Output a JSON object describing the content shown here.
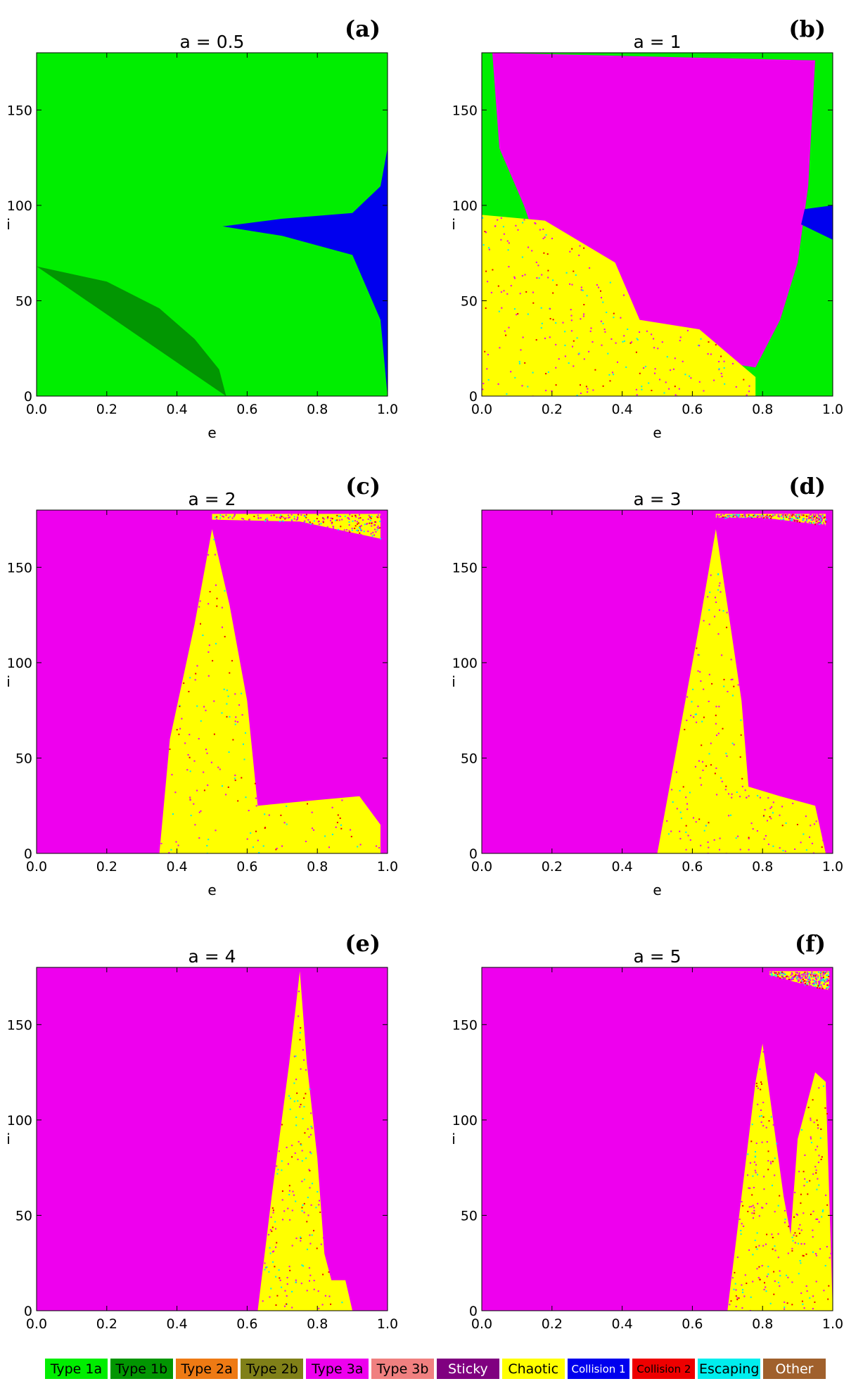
{
  "colors": {
    "type_1a": "#00ee00",
    "type_1b": "#029602",
    "type_2a": "#ee7a14",
    "type_2b": "#808018",
    "type_3a": "#ee00ee",
    "type_3b": "#f08080",
    "sticky": "#800080",
    "chaotic": "#ffff00",
    "collision_1": "#0000ee",
    "collision_2": "#ee0000",
    "escaping": "#00eeee",
    "other": "#a0602c"
  },
  "chart_data": [
    {
      "type": "heatmap",
      "panel": "(a)",
      "title": "a = 0.5",
      "xlabel": "e",
      "ylabel": "i",
      "xlim": [
        0,
        1
      ],
      "ylim": [
        0,
        180
      ],
      "xticks": [
        "0.0",
        "0.2",
        "0.4",
        "0.6",
        "0.8",
        "1.0"
      ],
      "yticks": [
        "0",
        "50",
        "100",
        "150"
      ],
      "regions": [
        {
          "class": "Type 1a",
          "description_points_e_i": [
            [
              0,
              0
            ],
            [
              1,
              180
            ]
          ]
        },
        {
          "class": "Type 1b",
          "boundary_e_i": [
            [
              0,
              68
            ],
            [
              0.2,
              60
            ],
            [
              0.35,
              46
            ],
            [
              0.45,
              30
            ],
            [
              0.52,
              14
            ],
            [
              0.54,
              0
            ]
          ]
        },
        {
          "class": "Collision 1",
          "boundary_e_i": [
            [
              0.53,
              89
            ],
            [
              0.7,
              84
            ],
            [
              0.9,
              74
            ],
            [
              0.98,
              40
            ],
            [
              1.0,
              0
            ],
            [
              1.0,
              130
            ],
            [
              0.98,
              110
            ],
            [
              0.9,
              96
            ],
            [
              0.7,
              93
            ],
            [
              0.53,
              89
            ]
          ]
        }
      ]
    },
    {
      "type": "heatmap",
      "panel": "(b)",
      "title": "a = 1",
      "xlabel": "e",
      "ylabel": "i",
      "xlim": [
        0,
        1
      ],
      "ylim": [
        0,
        180
      ],
      "xticks": [
        "0.0",
        "0.2",
        "0.4",
        "0.6",
        "0.8",
        "1.0"
      ],
      "yticks": [
        "0",
        "50",
        "100",
        "150"
      ],
      "regions": [
        {
          "class": "Type 1a",
          "background": true
        },
        {
          "class": "Type 3a",
          "boundary_e_i": [
            [
              0.03,
              180
            ],
            [
              0.95,
              176
            ],
            [
              0.93,
              110
            ],
            [
              0.9,
              70
            ],
            [
              0.85,
              40
            ],
            [
              0.78,
              15
            ],
            [
              0.25,
              30
            ],
            [
              0.12,
              100
            ],
            [
              0.05,
              130
            ]
          ]
        },
        {
          "class": "Chaotic",
          "boundary_e_i": [
            [
              0,
              95
            ],
            [
              0.18,
              92
            ],
            [
              0.38,
              70
            ],
            [
              0.45,
              40
            ],
            [
              0.62,
              35
            ],
            [
              0.78,
              10
            ],
            [
              0.78,
              0
            ],
            [
              0,
              0
            ]
          ]
        },
        {
          "class": "Collision 1",
          "boundary_e_i": [
            [
              0.91,
              90
            ],
            [
              1.0,
              82
            ],
            [
              1.0,
              100
            ],
            [
              0.92,
              98
            ]
          ]
        }
      ]
    },
    {
      "type": "heatmap",
      "panel": "(c)",
      "title": "a = 2",
      "xlabel": "e",
      "ylabel": "i",
      "xlim": [
        0,
        1
      ],
      "ylim": [
        0,
        180
      ],
      "xticks": [
        "0.0",
        "0.2",
        "0.4",
        "0.6",
        "0.8",
        "1.0"
      ],
      "yticks": [
        "0",
        "50",
        "100",
        "150"
      ],
      "regions": [
        {
          "class": "Type 3a",
          "background": true
        },
        {
          "class": "Chaotic",
          "boundary_e_i": [
            [
              0.5,
              170
            ],
            [
              0.55,
              130
            ],
            [
              0.6,
              80
            ],
            [
              0.63,
              25
            ],
            [
              0.8,
              28
            ],
            [
              0.92,
              30
            ],
            [
              0.98,
              15
            ],
            [
              0.98,
              0
            ],
            [
              0.35,
              0
            ],
            [
              0.38,
              60
            ],
            [
              0.45,
              120
            ]
          ]
        },
        {
          "class": "Chaotic",
          "boundary_e_i": [
            [
              0.5,
              178
            ],
            [
              0.98,
              178
            ],
            [
              0.98,
              165
            ],
            [
              0.75,
              174
            ],
            [
              0.5,
              175
            ]
          ]
        }
      ]
    },
    {
      "type": "heatmap",
      "panel": "(d)",
      "title": "a = 3",
      "xlabel": "e",
      "ylabel": "i",
      "xlim": [
        0,
        1
      ],
      "ylim": [
        0,
        180
      ],
      "xticks": [
        "0.0",
        "0.2",
        "0.4",
        "0.6",
        "0.8",
        "1.0"
      ],
      "yticks": [
        "0",
        "50",
        "100",
        "150"
      ],
      "regions": [
        {
          "class": "Type 3a",
          "background": true
        },
        {
          "class": "Chaotic",
          "boundary_e_i": [
            [
              0.667,
              170
            ],
            [
              0.7,
              130
            ],
            [
              0.74,
              80
            ],
            [
              0.76,
              35
            ],
            [
              0.85,
              30
            ],
            [
              0.95,
              25
            ],
            [
              0.98,
              0
            ],
            [
              0.5,
              0
            ],
            [
              0.55,
              50
            ],
            [
              0.62,
              120
            ]
          ]
        },
        {
          "class": "Chaotic",
          "boundary_e_i": [
            [
              0.667,
              178
            ],
            [
              0.98,
              178
            ],
            [
              0.98,
              172
            ],
            [
              0.8,
              176
            ],
            [
              0.667,
              176
            ]
          ]
        }
      ]
    },
    {
      "type": "heatmap",
      "panel": "(e)",
      "title": "a = 4",
      "xlabel": "e",
      "ylabel": "i",
      "xlim": [
        0,
        1
      ],
      "ylim": [
        0,
        180
      ],
      "xticks": [
        "0.0",
        "0.2",
        "0.4",
        "0.6",
        "0.8",
        "1.0"
      ],
      "yticks": [
        "0",
        "50",
        "100",
        "150"
      ],
      "regions": [
        {
          "class": "Type 3a",
          "background": true
        },
        {
          "class": "Chaotic",
          "boundary_e_i": [
            [
              0.75,
              178
            ],
            [
              0.77,
              130
            ],
            [
              0.8,
              80
            ],
            [
              0.82,
              30
            ],
            [
              0.84,
              16
            ],
            [
              0.88,
              16
            ],
            [
              0.9,
              0
            ],
            [
              0.63,
              0
            ],
            [
              0.67,
              60
            ],
            [
              0.72,
              130
            ]
          ]
        }
      ]
    },
    {
      "type": "heatmap",
      "panel": "(f)",
      "title": "a = 5",
      "xlabel": "e",
      "ylabel": "i",
      "xlim": [
        0,
        1
      ],
      "ylim": [
        0,
        180
      ],
      "xticks": [
        "0.0",
        "0.2",
        "0.4",
        "0.6",
        "0.8",
        "1.0"
      ],
      "yticks": [
        "0",
        "50",
        "100",
        "150"
      ],
      "regions": [
        {
          "class": "Type 3a",
          "background": true
        },
        {
          "class": "Chaotic",
          "boundary_e_i": [
            [
              0.8,
              140
            ],
            [
              0.83,
              100
            ],
            [
              0.86,
              60
            ],
            [
              0.88,
              40
            ],
            [
              0.9,
              90
            ],
            [
              0.95,
              125
            ],
            [
              0.98,
              120
            ],
            [
              1.0,
              0
            ],
            [
              0.7,
              0
            ],
            [
              0.74,
              60
            ],
            [
              0.78,
              120
            ]
          ]
        },
        {
          "class": "Chaotic",
          "boundary_e_i": [
            [
              0.82,
              178
            ],
            [
              0.99,
              178
            ],
            [
              0.99,
              168
            ],
            [
              0.9,
              172
            ],
            [
              0.82,
              176
            ]
          ]
        }
      ]
    }
  ],
  "legend": [
    {
      "label": "Type 1a",
      "color": "#00ee00",
      "text_color": "#000000"
    },
    {
      "label": "Type 1b",
      "color": "#029602",
      "text_color": "#000000"
    },
    {
      "label": "Type 2a",
      "color": "#ee7a14",
      "text_color": "#000000"
    },
    {
      "label": "Type 2b",
      "color": "#808018",
      "text_color": "#000000"
    },
    {
      "label": "Type 3a",
      "color": "#ee00ee",
      "text_color": "#000000"
    },
    {
      "label": "Type 3b",
      "color": "#f08080",
      "text_color": "#000000"
    },
    {
      "label": "Sticky",
      "color": "#800080",
      "text_color": "#ffffff"
    },
    {
      "label": "Chaotic",
      "color": "#ffff00",
      "text_color": "#000000"
    },
    {
      "label": "Collision 1",
      "color": "#0000ee",
      "text_color": "#ffffff",
      "small": true
    },
    {
      "label": "Collision 2",
      "color": "#ee0000",
      "text_color": "#000000",
      "small": true
    },
    {
      "label": "Escaping",
      "color": "#00eeee",
      "text_color": "#000000"
    },
    {
      "label": "Other",
      "color": "#a0602c",
      "text_color": "#ffffff"
    }
  ]
}
